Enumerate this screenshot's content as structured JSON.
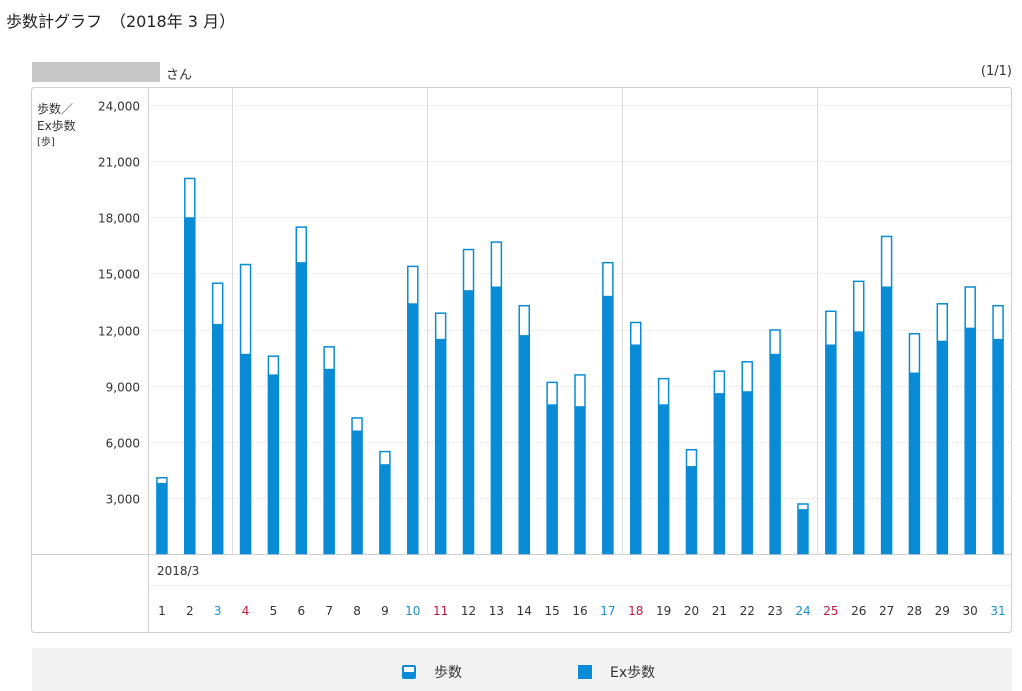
{
  "page": {
    "title": "歩数計グラフ　（2018年 3 月）",
    "user_suffix": "さん",
    "pager": "(1/1)"
  },
  "legend": {
    "steps_label": "歩数",
    "ex_steps_label": "Ex歩数"
  },
  "colors": {
    "bar": "#0a8bd6",
    "weekday": "#333333",
    "saturday": "#1a8fd0",
    "sunday": "#c0143c"
  },
  "chart_data": {
    "type": "bar",
    "stacked_overlay": true,
    "ylabel_lines": [
      "歩数／",
      "Ex歩数",
      "[歩]"
    ],
    "period_label": "2018/3",
    "ylim": [
      0,
      24000
    ],
    "yticks": [
      "3,000",
      "6,000",
      "9,000",
      "12,000",
      "15,000",
      "18,000",
      "21,000",
      "24,000"
    ],
    "categories": [
      "1",
      "2",
      "3",
      "4",
      "5",
      "6",
      "7",
      "8",
      "9",
      "10",
      "11",
      "12",
      "13",
      "14",
      "15",
      "16",
      "17",
      "18",
      "19",
      "20",
      "21",
      "22",
      "23",
      "24",
      "25",
      "26",
      "27",
      "28",
      "29",
      "30",
      "31"
    ],
    "day_types": [
      "weekday",
      "weekday",
      "saturday",
      "sunday",
      "weekday",
      "weekday",
      "weekday",
      "weekday",
      "weekday",
      "saturday",
      "sunday",
      "weekday",
      "weekday",
      "weekday",
      "weekday",
      "weekday",
      "saturday",
      "sunday",
      "weekday",
      "weekday",
      "weekday",
      "weekday",
      "weekday",
      "saturday",
      "sunday",
      "weekday",
      "weekday",
      "weekday",
      "weekday",
      "weekday",
      "saturday"
    ],
    "series": [
      {
        "name": "歩数",
        "values": [
          4100,
          20100,
          14500,
          15500,
          10600,
          17500,
          11100,
          7300,
          5500,
          15400,
          12900,
          16300,
          16700,
          13300,
          9200,
          9600,
          15600,
          12400,
          9400,
          5600,
          9800,
          10300,
          12000,
          2700,
          13000,
          14600,
          17000,
          11800,
          13400,
          14300,
          13300
        ]
      },
      {
        "name": "Ex歩数",
        "values": [
          3800,
          18000,
          12300,
          10700,
          9600,
          15600,
          9900,
          6600,
          4800,
          13400,
          11500,
          14100,
          14300,
          11700,
          8000,
          7900,
          13800,
          11200,
          8000,
          4700,
          8600,
          8700,
          10700,
          2400,
          11200,
          11900,
          14300,
          9700,
          11400,
          12100,
          11500
        ]
      }
    ],
    "grid": true,
    "legend_position": "bottom"
  }
}
